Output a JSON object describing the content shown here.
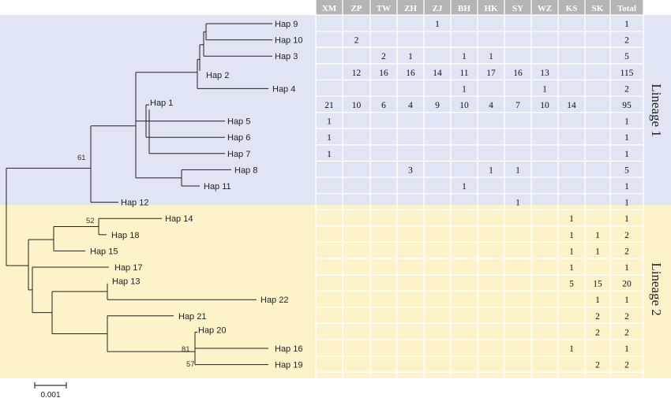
{
  "columns": [
    "XM",
    "ZP",
    "TW",
    "ZH",
    "ZJ",
    "BH",
    "HK",
    "SY",
    "WZ",
    "KS",
    "SK",
    "Total"
  ],
  "lineages": [
    {
      "label": "Lineage 1",
      "color": "#dfe5f3"
    },
    {
      "label": "Lineage 2",
      "color": "#fcf3c9"
    }
  ],
  "header_color": "#b5b5b5",
  "haplotypes": [
    {
      "name": "Hap 9",
      "counts": [
        "",
        "",
        "",
        "",
        "1",
        "",
        "",
        "",
        "",
        "",
        "",
        "1"
      ]
    },
    {
      "name": "Hap 10",
      "counts": [
        "",
        "2",
        "",
        "",
        "",
        "",
        "",
        "",
        "",
        "",
        "",
        "2"
      ]
    },
    {
      "name": "Hap 3",
      "counts": [
        "",
        "",
        "2",
        "1",
        "",
        "1",
        "1",
        "",
        "",
        "",
        "",
        "5"
      ]
    },
    {
      "name": "Hap 2",
      "counts": [
        "",
        "12",
        "16",
        "16",
        "14",
        "11",
        "17",
        "16",
        "13",
        "",
        "",
        "115"
      ]
    },
    {
      "name": "Hap 4",
      "counts": [
        "",
        "",
        "",
        "",
        "",
        "1",
        "",
        "",
        "1",
        "",
        "",
        "2"
      ]
    },
    {
      "name": "Hap 1",
      "counts": [
        "21",
        "10",
        "6",
        "4",
        "9",
        "10",
        "4",
        "7",
        "10",
        "14",
        "",
        "95"
      ]
    },
    {
      "name": "Hap 5",
      "counts": [
        "1",
        "",
        "",
        "",
        "",
        "",
        "",
        "",
        "",
        "",
        "",
        "1"
      ]
    },
    {
      "name": "Hap 6",
      "counts": [
        "1",
        "",
        "",
        "",
        "",
        "",
        "",
        "",
        "",
        "",
        "",
        "1"
      ]
    },
    {
      "name": "Hap 7",
      "counts": [
        "1",
        "",
        "",
        "",
        "",
        "",
        "",
        "",
        "",
        "",
        "",
        "1"
      ]
    },
    {
      "name": "Hap 8",
      "counts": [
        "",
        "",
        "",
        "3",
        "",
        "",
        "1",
        "1",
        "",
        "",
        "",
        "5"
      ]
    },
    {
      "name": "Hap 11",
      "counts": [
        "",
        "",
        "",
        "",
        "",
        "1",
        "",
        "",
        "",
        "",
        "",
        "1"
      ]
    },
    {
      "name": "Hap 12",
      "counts": [
        "",
        "",
        "",
        "",
        "",
        "",
        "",
        "1",
        "",
        "",
        "",
        "1"
      ]
    },
    {
      "name": "Hap 14",
      "counts": [
        "",
        "",
        "",
        "",
        "",
        "",
        "",
        "",
        "",
        "1",
        "",
        "1"
      ]
    },
    {
      "name": "Hap 18",
      "counts": [
        "",
        "",
        "",
        "",
        "",
        "",
        "",
        "",
        "",
        "1",
        "1",
        "2"
      ]
    },
    {
      "name": "Hap 15",
      "counts": [
        "",
        "",
        "",
        "",
        "",
        "",
        "",
        "",
        "",
        "1",
        "1",
        "2"
      ]
    },
    {
      "name": "Hap 17",
      "counts": [
        "",
        "",
        "",
        "",
        "",
        "",
        "",
        "",
        "",
        "1",
        "",
        "1"
      ]
    },
    {
      "name": "Hap 13",
      "counts": [
        "",
        "",
        "",
        "",
        "",
        "",
        "",
        "",
        "",
        "5",
        "15",
        "20"
      ]
    },
    {
      "name": "Hap 22",
      "counts": [
        "",
        "",
        "",
        "",
        "",
        "",
        "",
        "",
        "",
        "",
        "1",
        "1"
      ]
    },
    {
      "name": "Hap 21",
      "counts": [
        "",
        "",
        "",
        "",
        "",
        "",
        "",
        "",
        "",
        "",
        "2",
        "2"
      ]
    },
    {
      "name": "Hap 20",
      "counts": [
        "",
        "",
        "",
        "",
        "",
        "",
        "",
        "",
        "",
        "",
        "2",
        "2"
      ]
    },
    {
      "name": "Hap 16",
      "counts": [
        "",
        "",
        "",
        "",
        "",
        "",
        "",
        "",
        "",
        "1",
        "",
        "1"
      ]
    },
    {
      "name": "Hap 19",
      "counts": [
        "",
        "",
        "",
        "",
        "",
        "",
        "",
        "",
        "",
        "",
        "2",
        "2"
      ]
    }
  ],
  "bootstrap": [
    "61",
    "52",
    "81",
    "57"
  ],
  "scale_label": "0.001"
}
